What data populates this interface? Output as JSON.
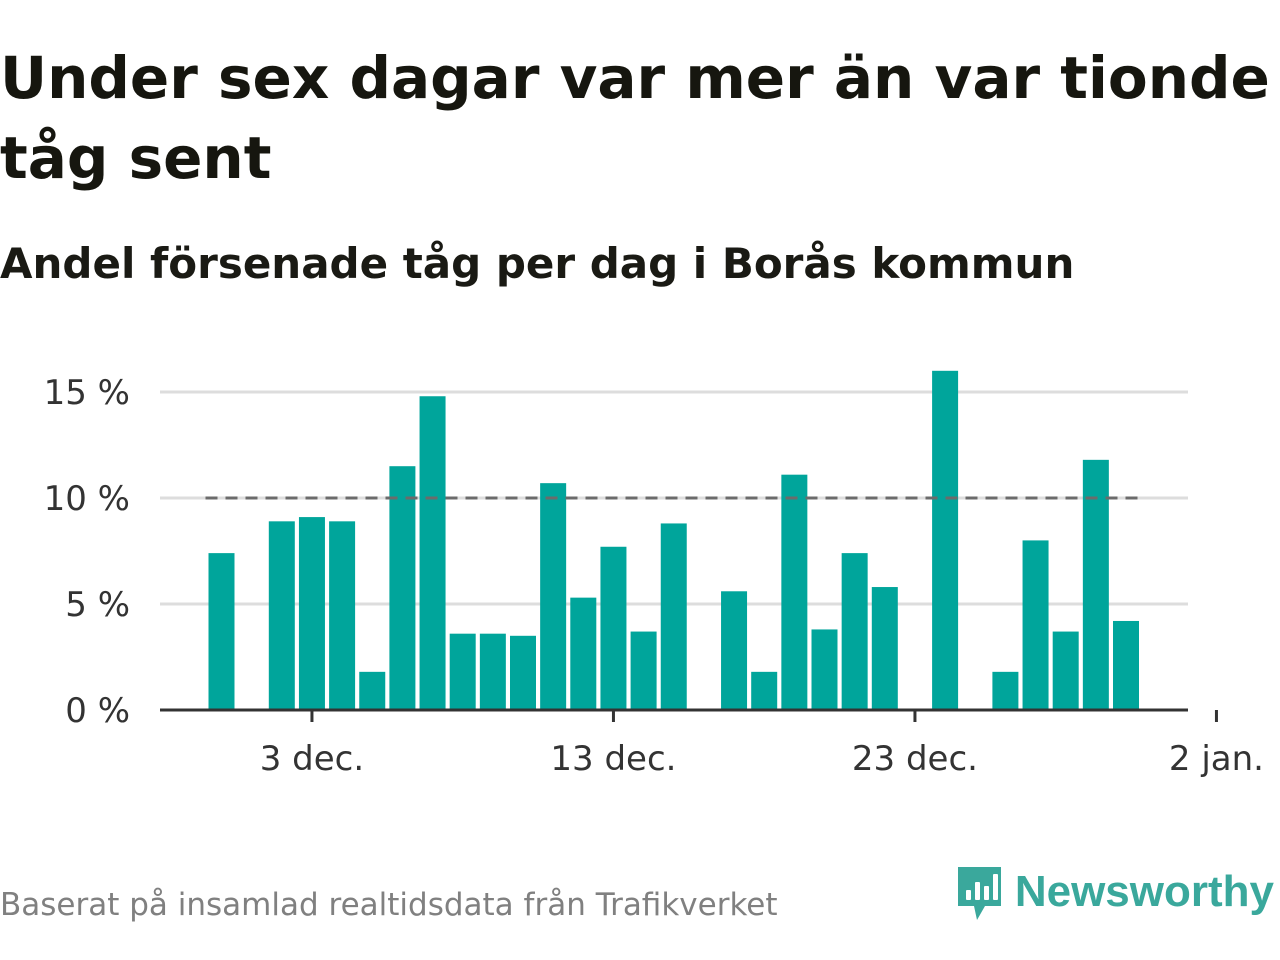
{
  "header": {
    "title": "Under sex dagar var mer än var tionde tåg sent",
    "subtitle": "Andel försenade tåg per dag i Borås kommun"
  },
  "footer": {
    "source": "Baserat på insamlad realtidsdata från Trafikverket",
    "brand": "Newsworthy",
    "brand_icon": "newsworthy-logo-icon"
  },
  "colors": {
    "bar": "#00a59b",
    "reference_line": "#6b6b6b",
    "grid": "#dddddd",
    "axis": "#333333",
    "brand": "#3aa89c"
  },
  "chart_data": {
    "type": "bar",
    "title": "Andel försenade tåg per dag i Borås kommun",
    "xlabel": "",
    "ylabel": "",
    "x": [
      "2022-11-30",
      "2022-12-01",
      "2022-12-02",
      "2022-12-03",
      "2022-12-04",
      "2022-12-05",
      "2022-12-06",
      "2022-12-07",
      "2022-12-08",
      "2022-12-09",
      "2022-12-10",
      "2022-12-11",
      "2022-12-12",
      "2022-12-13",
      "2022-12-14",
      "2022-12-15",
      "2022-12-16",
      "2022-12-17",
      "2022-12-18",
      "2022-12-19",
      "2022-12-20",
      "2022-12-21",
      "2022-12-22",
      "2022-12-23",
      "2022-12-24",
      "2022-12-25",
      "2022-12-26",
      "2022-12-27",
      "2022-12-28",
      "2022-12-29",
      "2022-12-30",
      "2022-12-31"
    ],
    "values": [
      7.4,
      0,
      8.9,
      9.1,
      8.9,
      1.8,
      11.5,
      14.8,
      3.6,
      3.6,
      3.5,
      10.7,
      5.3,
      7.7,
      3.7,
      8.8,
      0,
      5.6,
      1.8,
      11.1,
      3.8,
      7.4,
      5.8,
      0,
      16.0,
      0,
      1.8,
      8.0,
      3.7,
      11.8,
      4.2,
      0
    ],
    "unit": "%",
    "ylim": [
      0,
      16
    ],
    "yticks": [
      0,
      5,
      10,
      15
    ],
    "ytick_labels": [
      "0 %",
      "5 %",
      "10 %",
      "15 %"
    ],
    "xticks": [
      "2022-12-03",
      "2022-12-13",
      "2022-12-23",
      "2023-01-02"
    ],
    "xtick_labels": [
      "3 dec.",
      "13 dec.",
      "23 dec.",
      "2 jan."
    ],
    "reference_line": {
      "value": 10,
      "style": "dashed"
    },
    "grid": true
  }
}
